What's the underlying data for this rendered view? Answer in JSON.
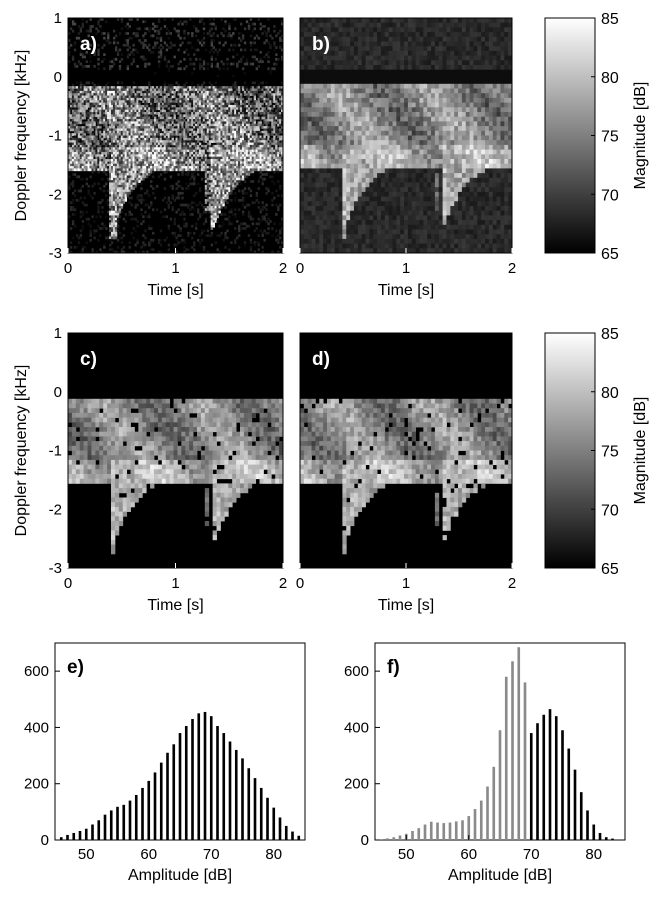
{
  "chart_data": [
    {
      "type": "heatmap",
      "panel_label": "a)",
      "xlabel": "Time [s]",
      "ylabel": "Doppler frequency [kHz]",
      "xlim": [
        0,
        2
      ],
      "ylim": [
        -3,
        1
      ],
      "xticks": [
        "0",
        "1",
        "2"
      ],
      "yticks": [
        "1",
        "0",
        "-1",
        "-2",
        "-3"
      ],
      "style": "noisy"
    },
    {
      "type": "heatmap",
      "panel_label": "b)",
      "xlabel": "Time [s]",
      "xlim": [
        0,
        2
      ],
      "ylim": [
        -3,
        1
      ],
      "xticks": [
        "0",
        "1",
        "2"
      ],
      "style": "smooth"
    },
    {
      "type": "heatmap",
      "panel_label": "c)",
      "xlabel": "Time [s]",
      "ylabel": "Doppler frequency [kHz]",
      "xlim": [
        0,
        2
      ],
      "ylim": [
        -3,
        1
      ],
      "xticks": [
        "0",
        "1",
        "2"
      ],
      "yticks": [
        "1",
        "0",
        "-1",
        "-2",
        "-3"
      ],
      "style": "thresholded"
    },
    {
      "type": "heatmap",
      "panel_label": "d)",
      "xlabel": "Time [s]",
      "xlim": [
        0,
        2
      ],
      "ylim": [
        -3,
        1
      ],
      "xticks": [
        "0",
        "1",
        "2"
      ],
      "style": "thresholded-smooth"
    },
    {
      "type": "colorbar",
      "label": "Magnitude [dB]",
      "range": [
        65,
        85
      ],
      "ticks": [
        "85",
        "80",
        "75",
        "70",
        "65"
      ]
    },
    {
      "type": "colorbar",
      "label": "Magnitude [dB]",
      "range": [
        65,
        85
      ],
      "ticks": [
        "85",
        "80",
        "75",
        "70",
        "65"
      ]
    },
    {
      "type": "bar",
      "panel_label": "e)",
      "xlabel": "Amplitude [dB]",
      "xlim": [
        45,
        85
      ],
      "ylim": [
        0,
        700
      ],
      "xticks": [
        "50",
        "60",
        "70",
        "80"
      ],
      "yticks": [
        "600",
        "400",
        "200",
        "0"
      ],
      "x": [
        46,
        47,
        48,
        49,
        50,
        51,
        52,
        53,
        54,
        55,
        56,
        57,
        58,
        59,
        60,
        61,
        62,
        63,
        64,
        65,
        66,
        67,
        68,
        69,
        70,
        71,
        72,
        73,
        74,
        75,
        76,
        77,
        78,
        79,
        80,
        81,
        82,
        83,
        84
      ],
      "values": [
        10,
        18,
        25,
        32,
        40,
        55,
        70,
        90,
        105,
        118,
        125,
        140,
        160,
        185,
        210,
        240,
        275,
        310,
        340,
        380,
        405,
        430,
        450,
        455,
        440,
        405,
        380,
        350,
        320,
        290,
        255,
        220,
        185,
        150,
        115,
        80,
        50,
        30,
        15
      ],
      "colors": [
        "#000000"
      ]
    },
    {
      "type": "bar",
      "panel_label": "f)",
      "xlabel": "Amplitude [dB]",
      "xlim": [
        45,
        85
      ],
      "ylim": [
        0,
        700
      ],
      "xticks": [
        "50",
        "60",
        "70",
        "80"
      ],
      "yticks": [
        "600",
        "400",
        "200",
        "0"
      ],
      "series": [
        {
          "x": [
            46,
            47,
            48,
            49,
            50,
            51,
            52,
            53,
            54,
            55,
            56,
            57,
            58,
            59,
            60,
            61,
            62,
            63,
            64,
            65,
            66,
            67,
            68,
            69
          ],
          "values": [
            3,
            6,
            10,
            16,
            22,
            32,
            42,
            55,
            65,
            62,
            60,
            62,
            66,
            70,
            85,
            110,
            140,
            190,
            260,
            390,
            580,
            635,
            685,
            560
          ],
          "color": "#8a8a8a"
        },
        {
          "x": [
            70,
            71,
            72,
            73,
            74,
            75,
            76,
            77,
            78,
            79,
            80,
            81,
            82,
            83
          ],
          "values": [
            380,
            415,
            445,
            465,
            440,
            390,
            325,
            250,
            170,
            105,
            55,
            25,
            10,
            5
          ],
          "color": "#000000"
        }
      ]
    }
  ]
}
